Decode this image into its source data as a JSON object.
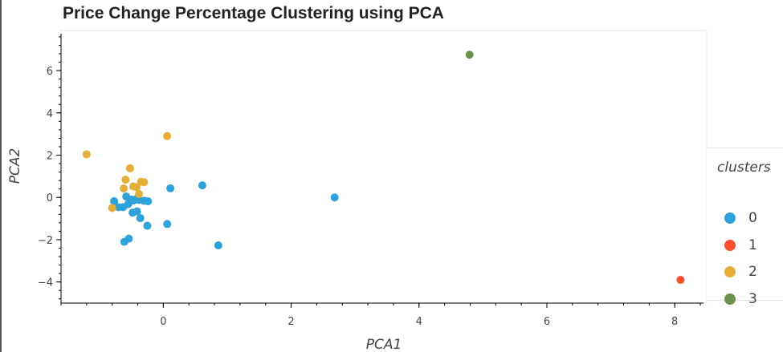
{
  "chart_data": {
    "type": "scatter",
    "title": "Price Change Percentage Clustering using PCA",
    "xlabel": "PCA1",
    "ylabel": "PCA2",
    "xlim": [
      -1.6,
      8.5
    ],
    "ylim": [
      -5.0,
      7.9
    ],
    "x_ticks": [
      0,
      2,
      4,
      6,
      8
    ],
    "y_ticks": [
      -4,
      -2,
      0,
      2,
      4,
      6
    ],
    "x_tick_labels": [
      "0",
      "2",
      "4",
      "6",
      "8"
    ],
    "y_tick_labels": [
      "−4",
      "−2",
      "0",
      "2",
      "4",
      "6"
    ],
    "legend": {
      "title": "clusters",
      "placement": "right"
    },
    "series": [
      {
        "name": "0",
        "color": "#30a2da",
        "points": [
          [
            -0.77,
            -0.18
          ],
          [
            -0.7,
            -0.46
          ],
          [
            -0.63,
            -0.46
          ],
          [
            -0.58,
            0.04
          ],
          [
            -0.55,
            -0.32
          ],
          [
            -0.5,
            -0.1
          ],
          [
            -0.47,
            -0.15
          ],
          [
            -0.42,
            -0.08
          ],
          [
            -0.38,
            -0.12
          ],
          [
            -0.3,
            -0.16
          ],
          [
            -0.24,
            -0.18
          ],
          [
            -0.48,
            -0.72
          ],
          [
            -0.41,
            -0.66
          ],
          [
            -0.36,
            -0.98
          ],
          [
            -0.25,
            -1.34
          ],
          [
            -0.61,
            -2.1
          ],
          [
            -0.54,
            -1.95
          ],
          [
            0.06,
            -1.26
          ],
          [
            0.11,
            0.43
          ],
          [
            0.61,
            0.57
          ],
          [
            0.86,
            -2.27
          ],
          [
            2.68,
            0.0
          ]
        ]
      },
      {
        "name": "1",
        "color": "#fc4f30",
        "points": [
          [
            8.09,
            -3.9
          ]
        ]
      },
      {
        "name": "2",
        "color": "#e5ae38",
        "points": [
          [
            -1.2,
            2.04
          ],
          [
            -0.8,
            -0.5
          ],
          [
            -0.62,
            0.42
          ],
          [
            -0.59,
            0.84
          ],
          [
            -0.52,
            1.38
          ],
          [
            -0.47,
            0.52
          ],
          [
            -0.42,
            0.48
          ],
          [
            -0.38,
            0.16
          ],
          [
            -0.35,
            0.74
          ],
          [
            -0.3,
            0.72
          ],
          [
            0.06,
            2.9
          ]
        ]
      },
      {
        "name": "3",
        "color": "#6d904f",
        "points": [
          [
            4.79,
            6.75
          ]
        ]
      }
    ]
  }
}
